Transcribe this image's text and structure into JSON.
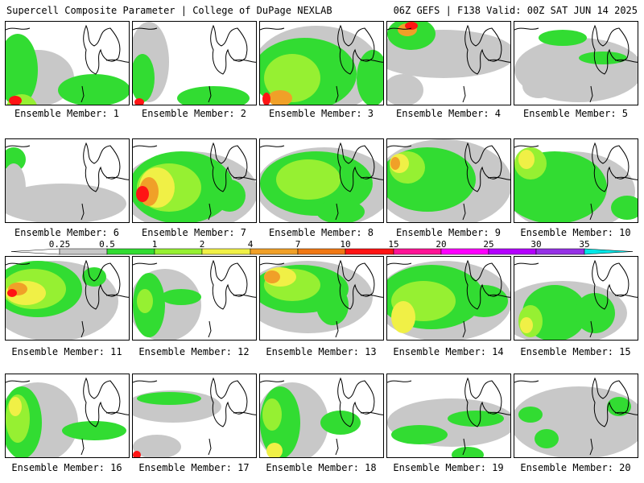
{
  "header": {
    "left": "Supercell Composite Parameter | College of DuPage NEXLAB",
    "right": "06Z GEFS | F138 Valid: 00Z SAT JUN 14 2025"
  },
  "members": [
    "Ensemble Member: 1",
    "Ensemble Member: 2",
    "Ensemble Member: 3",
    "Ensemble Member: 4",
    "Ensemble Member: 5",
    "Ensemble Member: 6",
    "Ensemble Member: 7",
    "Ensemble Member: 8",
    "Ensemble Member: 9",
    "Ensemble Member: 10",
    "Ensemble Member: 11",
    "Ensemble Member: 12",
    "Ensemble Member: 13",
    "Ensemble Member: 14",
    "Ensemble Member: 15",
    "Ensemble Member: 16",
    "Ensemble Member: 17",
    "Ensemble Member: 18",
    "Ensemble Member: 19",
    "Ensemble Member: 20"
  ],
  "colorbar": {
    "ticks": [
      "0.25",
      "0.5",
      "1",
      "2",
      "4",
      "7",
      "10",
      "15",
      "20",
      "25",
      "30",
      "35"
    ],
    "colors": [
      "#c8c8c8",
      "#32dc32",
      "#96f032",
      "#f0f046",
      "#f0a028",
      "#f07814",
      "#ff1414",
      "#ff1496",
      "#ff00ff",
      "#b400ff",
      "#9632e6",
      "#b478e6",
      "#00e6e6"
    ]
  },
  "colors": {
    "gray": "#c8c8c8",
    "green": "#32dc32",
    "lightgreen": "#96f032",
    "yellow": "#f0f046",
    "orange": "#f0a028",
    "red": "#ff1414"
  }
}
